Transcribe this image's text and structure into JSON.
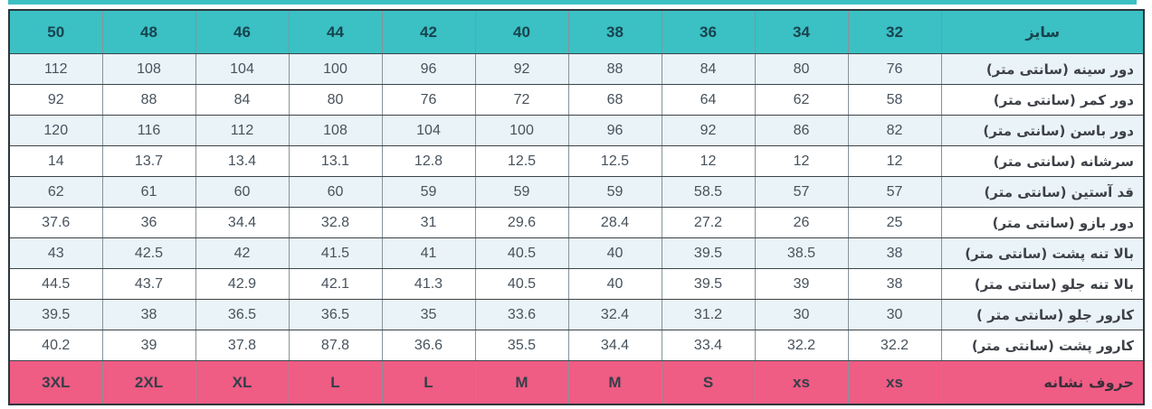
{
  "page": {
    "accent_color": "#3bc0c4",
    "footer_color": "#ef5c84",
    "row_alt_color": "#eaf3f8",
    "row_color": "#ffffff",
    "header_text_color": "#17444f",
    "body_text_color": "#47525c"
  },
  "chart_data": {
    "type": "table",
    "direction": "rtl",
    "title": "",
    "size_header_label": "سایز",
    "sizes": [
      "50",
      "48",
      "46",
      "44",
      "42",
      "40",
      "38",
      "36",
      "34",
      "32"
    ],
    "rows": [
      {
        "label": "دور سینه (سانتی متر)",
        "values": [
          "112",
          "108",
          "104",
          "100",
          "96",
          "92",
          "88",
          "84",
          "80",
          "76"
        ]
      },
      {
        "label": "دور کمر (سانتی متر)",
        "values": [
          "92",
          "88",
          "84",
          "80",
          "76",
          "72",
          "68",
          "64",
          "62",
          "58"
        ]
      },
      {
        "label": "دور باسن (سانتی متر)",
        "values": [
          "120",
          "116",
          "112",
          "108",
          "104",
          "100",
          "96",
          "92",
          "86",
          "82"
        ]
      },
      {
        "label": "سرشانه (سانتی متر)",
        "values": [
          "14",
          "13.7",
          "13.4",
          "13.1",
          "12.8",
          "12.5",
          "12.5",
          "12",
          "12",
          "12"
        ]
      },
      {
        "label": "قد آستین (سانتی متر)",
        "values": [
          "62",
          "61",
          "60",
          "60",
          "59",
          "59",
          "59",
          "58.5",
          "57",
          "57"
        ]
      },
      {
        "label": "دور بازو (سانتی متر)",
        "values": [
          "37.6",
          "36",
          "34.4",
          "32.8",
          "31",
          "29.6",
          "28.4",
          "27.2",
          "26",
          "25"
        ]
      },
      {
        "label": "بالا تنه پشت (سانتی متر)",
        "values": [
          "43",
          "42.5",
          "42",
          "41.5",
          "41",
          "40.5",
          "40",
          "39.5",
          "38.5",
          "38"
        ]
      },
      {
        "label": "بالا تنه جلو (سانتی متر)",
        "values": [
          "44.5",
          "43.7",
          "42.9",
          "42.1",
          "41.3",
          "40.5",
          "40",
          "39.5",
          "39",
          "38"
        ]
      },
      {
        "label": "کارور جلو (سانتی متر )",
        "values": [
          "39.5",
          "38",
          "36.5",
          "36.5",
          "35",
          "33.6",
          "32.4",
          "31.2",
          "30",
          "30"
        ]
      },
      {
        "label": "کارور پشت (سانتی متر)",
        "values": [
          "40.2",
          "39",
          "37.8",
          "87.8",
          "36.6",
          "35.5",
          "34.4",
          "33.4",
          "32.2",
          "32.2"
        ]
      }
    ],
    "letter_row": {
      "label": "حروف نشانه",
      "values": [
        "3XL",
        "2XL",
        "XL",
        "L",
        "L",
        "M",
        "M",
        "S",
        "xs",
        "xs"
      ]
    }
  }
}
